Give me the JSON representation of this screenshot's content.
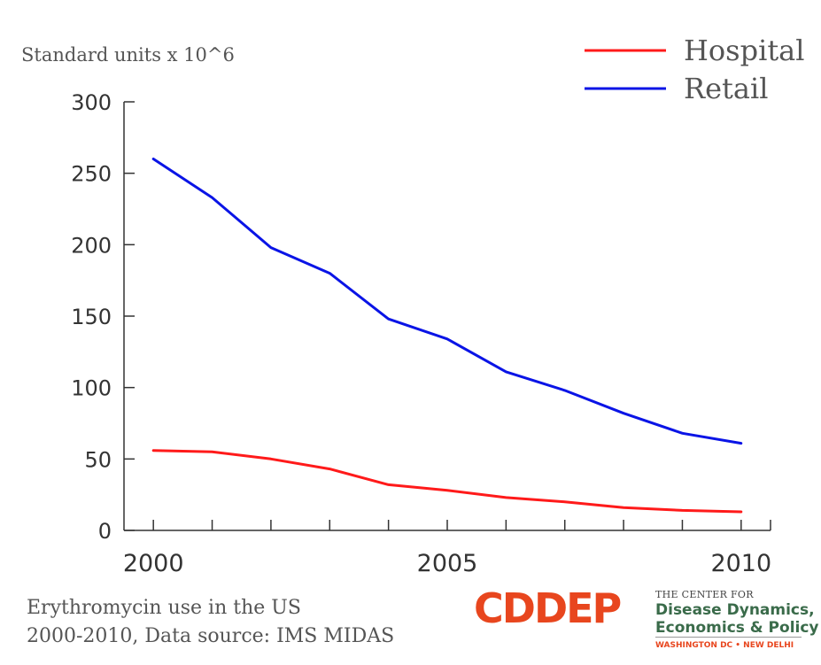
{
  "chart_data": {
    "type": "line",
    "ylabel": "Standard units x 10^6",
    "ylim": [
      0,
      300
    ],
    "yticks": [
      0,
      50,
      100,
      150,
      200,
      250,
      300
    ],
    "xlim": [
      1999.5,
      2010.5
    ],
    "xticks": [
      2000,
      2005,
      2010
    ],
    "xminor": [
      2000,
      2001,
      2002,
      2003,
      2004,
      2005,
      2006,
      2007,
      2008,
      2009,
      2010
    ],
    "x": [
      2000,
      2001,
      2002,
      2003,
      2004,
      2005,
      2006,
      2007,
      2008,
      2009,
      2010
    ],
    "series": [
      {
        "name": "Hospital",
        "color": "#ff1a1a",
        "values": [
          56,
          55,
          50,
          43,
          32,
          28,
          23,
          20,
          16,
          14,
          13
        ]
      },
      {
        "name": "Retail",
        "color": "#0a14e6",
        "values": [
          260,
          233,
          198,
          180,
          148,
          134,
          111,
          98,
          82,
          68,
          61
        ]
      }
    ],
    "legend_position": "top-right",
    "grid": false
  },
  "caption": {
    "line1": "Erythromycin use in the US",
    "line2": "2000-2010, Data source: IMS MIDAS"
  },
  "logo": {
    "mark": "CDDEP",
    "small": "THE CENTER FOR",
    "line1": "Disease Dynamics,",
    "line2": "Economics & Policy",
    "cities": "WASHINGTON DC • NEW DELHI",
    "color_mark": "#e8461e",
    "color_text": "#3a6b4a"
  }
}
